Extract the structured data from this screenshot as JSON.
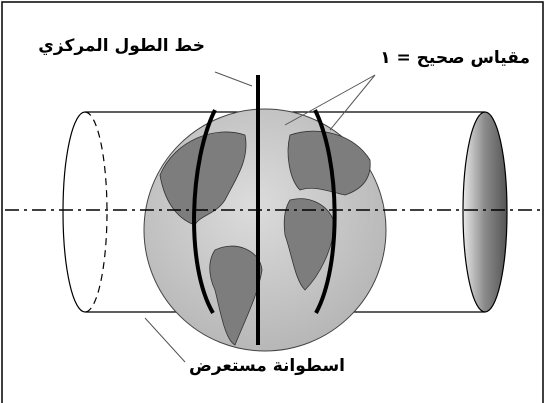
{
  "labels": {
    "central_meridian": "خط الطول المركزي",
    "true_scale": "مقياس صحيح = ١",
    "cylinder": "اسطوانة مستعرض"
  }
}
